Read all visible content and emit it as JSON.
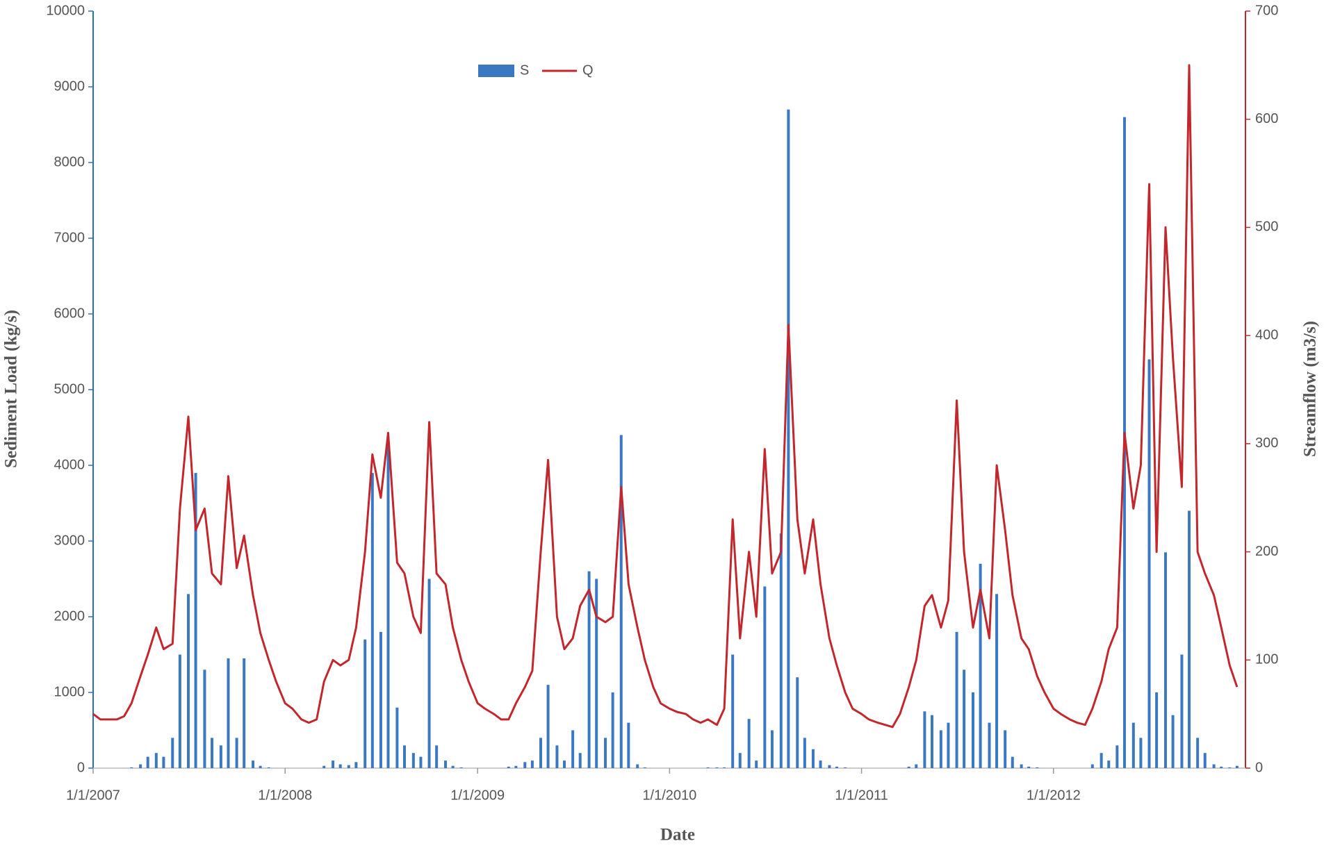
{
  "chart_data": {
    "type": "combo",
    "xlabel": "Date",
    "ylabel": "Sediment Load (kg/s)",
    "y2label": "Streamflow (m3/s)",
    "x": [
      "1/1/2007",
      "1/15/2007",
      "2/1/2007",
      "2/15/2007",
      "3/1/2007",
      "3/15/2007",
      "4/1/2007",
      "4/15/2007",
      "5/1/2007",
      "5/15/2007",
      "6/1/2007",
      "6/15/2007",
      "7/1/2007",
      "7/15/2007",
      "8/1/2007",
      "8/15/2007",
      "9/1/2007",
      "9/15/2007",
      "10/1/2007",
      "10/15/2007",
      "11/1/2007",
      "11/15/2007",
      "12/1/2007",
      "12/15/2007",
      "1/1/2008",
      "1/15/2008",
      "2/1/2008",
      "2/15/2008",
      "3/1/2008",
      "3/15/2008",
      "4/1/2008",
      "4/15/2008",
      "5/1/2008",
      "5/15/2008",
      "6/1/2008",
      "6/15/2008",
      "7/1/2008",
      "7/15/2008",
      "8/1/2008",
      "8/15/2008",
      "9/1/2008",
      "9/15/2008",
      "10/1/2008",
      "10/15/2008",
      "11/1/2008",
      "11/15/2008",
      "12/1/2008",
      "12/15/2008",
      "1/1/2009",
      "1/15/2009",
      "2/1/2009",
      "2/15/2009",
      "3/1/2009",
      "3/15/2009",
      "4/1/2009",
      "4/15/2009",
      "5/1/2009",
      "5/15/2009",
      "6/1/2009",
      "6/15/2009",
      "7/1/2009",
      "7/15/2009",
      "8/1/2009",
      "8/15/2009",
      "9/1/2009",
      "9/15/2009",
      "10/1/2009",
      "10/15/2009",
      "11/1/2009",
      "11/15/2009",
      "12/1/2009",
      "12/15/2009",
      "1/1/2010",
      "1/15/2010",
      "2/1/2010",
      "2/15/2010",
      "3/1/2010",
      "3/15/2010",
      "4/1/2010",
      "4/15/2010",
      "5/1/2010",
      "5/15/2010",
      "6/1/2010",
      "6/15/2010",
      "7/1/2010",
      "7/15/2010",
      "8/1/2010",
      "8/15/2010",
      "9/1/2010",
      "9/15/2010",
      "10/1/2010",
      "10/15/2010",
      "11/1/2010",
      "11/15/2010",
      "12/1/2010",
      "12/15/2010",
      "1/1/2011",
      "1/15/2011",
      "2/1/2011",
      "2/15/2011",
      "3/1/2011",
      "3/15/2011",
      "4/1/2011",
      "4/15/2011",
      "5/1/2011",
      "5/15/2011",
      "6/1/2011",
      "6/15/2011",
      "7/1/2011",
      "7/15/2011",
      "8/1/2011",
      "8/15/2011",
      "9/1/2011",
      "9/15/2011",
      "10/1/2011",
      "10/15/2011",
      "11/1/2011",
      "11/15/2011",
      "12/1/2011",
      "12/15/2011",
      "1/1/2012",
      "1/15/2012",
      "2/1/2012",
      "2/15/2012",
      "3/1/2012",
      "3/15/2012",
      "4/1/2012",
      "4/15/2012",
      "5/1/2012",
      "5/15/2012",
      "6/1/2012",
      "6/15/2012",
      "7/1/2012",
      "7/15/2012",
      "8/1/2012",
      "8/15/2012",
      "9/1/2012",
      "9/15/2012",
      "10/1/2012",
      "10/15/2012",
      "11/1/2012",
      "11/15/2012",
      "12/1/2012",
      "12/15/2012"
    ],
    "series": [
      {
        "name": "S",
        "type": "bar",
        "axis": "y",
        "color": "#3b78c2",
        "values": [
          0,
          0,
          0,
          0,
          0,
          10,
          50,
          150,
          200,
          150,
          400,
          1500,
          2300,
          3900,
          1300,
          400,
          300,
          1450,
          400,
          1450,
          100,
          30,
          10,
          0,
          0,
          0,
          0,
          0,
          0,
          30,
          100,
          50,
          40,
          80,
          1700,
          3900,
          1800,
          4300,
          800,
          300,
          200,
          150,
          2500,
          300,
          100,
          30,
          10,
          0,
          0,
          0,
          0,
          0,
          20,
          30,
          80,
          100,
          400,
          1100,
          300,
          100,
          500,
          200,
          2600,
          2500,
          400,
          1000,
          4400,
          600,
          50,
          10,
          0,
          0,
          0,
          0,
          0,
          0,
          0,
          10,
          10,
          10,
          1500,
          200,
          650,
          100,
          2400,
          500,
          3100,
          8700,
          1200,
          400,
          250,
          100,
          40,
          20,
          10,
          0,
          0,
          0,
          0,
          0,
          0,
          0,
          20,
          50,
          750,
          700,
          500,
          600,
          1800,
          1300,
          1000,
          2700,
          600,
          2300,
          500,
          150,
          50,
          20,
          10,
          0,
          0,
          0,
          0,
          0,
          0,
          50,
          200,
          100,
          300,
          8600,
          600,
          400,
          5400,
          1000,
          2850,
          700,
          1500,
          3400,
          400,
          200,
          50,
          20,
          10,
          30
        ]
      },
      {
        "name": "Q",
        "type": "line",
        "axis": "y2",
        "color": "#c1272d",
        "values": [
          50,
          45,
          45,
          45,
          48,
          60,
          85,
          105,
          130,
          110,
          115,
          240,
          325,
          220,
          240,
          180,
          170,
          270,
          185,
          215,
          160,
          125,
          100,
          80,
          60,
          55,
          45,
          42,
          45,
          80,
          100,
          95,
          100,
          130,
          200,
          290,
          250,
          310,
          190,
          180,
          140,
          125,
          320,
          180,
          170,
          130,
          100,
          80,
          60,
          55,
          50,
          45,
          45,
          60,
          75,
          90,
          200,
          285,
          140,
          110,
          120,
          150,
          165,
          140,
          135,
          140,
          260,
          170,
          130,
          100,
          75,
          60,
          55,
          52,
          50,
          45,
          42,
          45,
          40,
          55,
          230,
          120,
          200,
          140,
          295,
          180,
          200,
          410,
          230,
          180,
          230,
          170,
          120,
          95,
          70,
          55,
          50,
          45,
          42,
          40,
          38,
          50,
          75,
          100,
          150,
          160,
          130,
          155,
          340,
          200,
          130,
          165,
          120,
          280,
          220,
          160,
          120,
          110,
          85,
          70,
          55,
          50,
          45,
          42,
          40,
          55,
          80,
          110,
          130,
          310,
          240,
          280,
          540,
          200,
          500,
          380,
          260,
          650,
          200,
          180,
          160,
          130,
          95,
          75
        ]
      }
    ],
    "xlim": [
      "1/1/2007",
      "12/31/2012"
    ],
    "xticks": [
      "1/1/2007",
      "1/1/2008",
      "1/1/2009",
      "1/1/2010",
      "1/1/2011",
      "1/1/2012"
    ],
    "ylim": [
      0,
      10000
    ],
    "yticks": [
      0,
      1000,
      2000,
      3000,
      4000,
      5000,
      6000,
      7000,
      8000,
      9000,
      10000
    ],
    "y2lim": [
      0,
      700
    ],
    "y2ticks": [
      0,
      100,
      200,
      300,
      400,
      500,
      600,
      700
    ],
    "legend": "upper center",
    "grid": false
  }
}
